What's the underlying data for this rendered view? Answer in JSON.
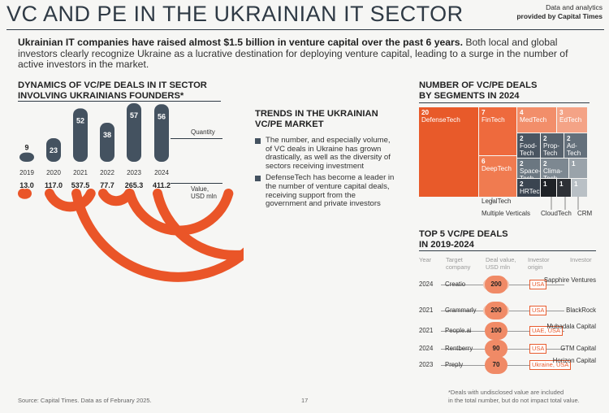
{
  "header": {
    "title": "VC AND PE IN THE UKRAINIAN IT SECTOR",
    "brand_line1": "Data and analytics",
    "brand_line2": "provided by Capital Times"
  },
  "intro": {
    "bold": "Ukrainian IT companies have raised almost $1.5 billion in venture capital over the past 6 years.",
    "rest": " Both local and global investors clearly recognize Ukraine as a lucrative destination for deploying venture capital, leading to a surge in the number of active investors in the market."
  },
  "dynamics": {
    "heading_l1": "DYNAMICS OF VC/PE DEALS IN IT SECTOR",
    "heading_l2": "INVOLVING UKRAINIANS FOUNDERS*",
    "quantity_label": "Quantity",
    "value_label_l1": "Value,",
    "value_label_l2": "USD mln"
  },
  "chart_data": [
    {
      "type": "bar",
      "title": "DYNAMICS OF VC/PE DEALS IN IT SECTOR INVOLVING UKRAINIANS FOUNDERS*",
      "categories": [
        "2019",
        "2020",
        "2021",
        "2022",
        "2023",
        "2024"
      ],
      "series": [
        {
          "name": "Quantity",
          "values": [
            9,
            23,
            52,
            38,
            57,
            56
          ]
        },
        {
          "name": "Value, USD mln",
          "values": [
            13.0,
            117.0,
            537.5,
            77.7,
            265.3,
            411.2
          ]
        }
      ],
      "value_labels": [
        "13.0",
        "117.0",
        "537.5",
        "77.7",
        "265.3",
        "411.2"
      ]
    },
    {
      "type": "heatmap",
      "title": "NUMBER OF VC/PE DEALS BY SEGMENTS IN 2024",
      "segments": [
        {
          "name": "DefenseTech",
          "value": 20
        },
        {
          "name": "FinTech",
          "value": 7
        },
        {
          "name": "MedTech",
          "value": 4
        },
        {
          "name": "EdTech",
          "value": 3
        },
        {
          "name": "DeepTech",
          "value": 6
        },
        {
          "name": "Food-Tech",
          "value": 2
        },
        {
          "name": "Prop-Tech",
          "value": 2
        },
        {
          "name": "Ad-Tech",
          "value": 2
        },
        {
          "name": "Space-Tech",
          "value": 2
        },
        {
          "name": "Clima-Tech",
          "value": 2
        },
        {
          "name": "HRTech",
          "value": 2
        },
        {
          "name": "LegalTech",
          "value": 1
        },
        {
          "name": "Multiple Verticals",
          "value": 1
        },
        {
          "name": "CloudTech",
          "value": 1
        },
        {
          "name": "CRM",
          "value": 1
        }
      ]
    },
    {
      "type": "table",
      "title": "TOP 5 VC/PE DEALS IN 2019-2024",
      "columns": [
        "Year",
        "Target company",
        "Deal value, USD mln",
        "Investor origin",
        "Investor"
      ],
      "rows": [
        [
          "2024",
          "Creatio",
          "200",
          "USA",
          "Sapphire Ventures"
        ],
        [
          "2021",
          "Grammarly",
          "200",
          "USA",
          "BlackRock"
        ],
        [
          "2021",
          "People.ai",
          "100",
          "UAE, USA",
          "Mubadala Capital"
        ],
        [
          "2024",
          "Rentberry",
          "90",
          "USA",
          "GTM Capital"
        ],
        [
          "2023",
          "Preply",
          "70",
          "Ukraine, USA",
          "Horizon Capital"
        ]
      ]
    }
  ],
  "trends": {
    "heading_l1": "TRENDS IN THE UKRAINIAN",
    "heading_l2": "VC/PE MARKET",
    "items": [
      "The number, and especially volume, of VC deals in Ukraine has grown drastically, as well as the diversity of sectors receiving investment",
      "DefenseTech has become a leader in the number of venture capital deals, receiving support from the government and private investors"
    ]
  },
  "segments": {
    "heading_l1": "NUMBER OF VC/PE DEALS",
    "heading_l2": "BY SEGMENTS IN 2024"
  },
  "top5": {
    "heading_l1": "TOP 5 VC/PE DEALS",
    "heading_l2": "IN 2019-2024",
    "col_year": "Year",
    "col_target_l1": "Target",
    "col_target_l2": "company",
    "col_value_l1": "Deal value,",
    "col_value_l2": "USD mln",
    "col_origin_l1": "Investor",
    "col_origin_l2": "origin",
    "col_investor": "Investor"
  },
  "footer": {
    "source": "Source: Capital Times. Data as of February 2025.",
    "page": "17",
    "note_l1": "*Deals with undisclosed value are included",
    "note_l2": "in the total number, but do not impact total value."
  },
  "colors": {
    "accent": "#ea5528",
    "dark_bar": "#445260",
    "pill": "#f4c7b4"
  }
}
